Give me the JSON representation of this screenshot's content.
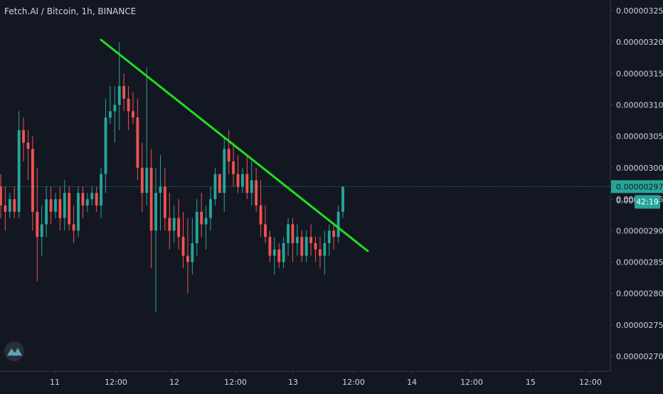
{
  "header": {
    "title": "Fetch.AI / Bitcoin, 1h, BINANCE"
  },
  "colors": {
    "background": "#131722",
    "up": "#26a69a",
    "down": "#ef5350",
    "trendline": "#22dd22",
    "price_line": "#26a69a",
    "axis_text": "#d1d4dc",
    "axis_border": "#363a45",
    "label_bg": "#26a69a",
    "label_text": "#131722"
  },
  "chart_data": {
    "type": "candlestick",
    "ylim": [
      2.68e-06,
      3.26e-06
    ],
    "y_ticks": [
      "0.00000325",
      "0.00000320",
      "0.00000315",
      "0.00000310",
      "0.00000305",
      "0.00000300",
      "0.00000295",
      "0.00000290",
      "0.00000285",
      "0.00000280",
      "0.00000275",
      "0.00000270"
    ],
    "x_ticks": [
      "11",
      "12:00",
      "12",
      "12:00",
      "13",
      "12:00",
      "14",
      "12:00",
      "15",
      "12:00"
    ],
    "current_price": {
      "label": "0.00000297",
      "value": 2.97e-06,
      "countdown": "42:19"
    },
    "partial_tick_label": "0.00000",
    "candles": [
      [
        297,
        299,
        292,
        294
      ],
      [
        294,
        297,
        290,
        293
      ],
      [
        293,
        296,
        292,
        295
      ],
      [
        295,
        297,
        292,
        293
      ],
      [
        293,
        309,
        292,
        306
      ],
      [
        306,
        308,
        301,
        304
      ],
      [
        304,
        306,
        298,
        303
      ],
      [
        303,
        305,
        290,
        293
      ],
      [
        293,
        300,
        282,
        289
      ],
      [
        289,
        294,
        286,
        291
      ],
      [
        291,
        297,
        289,
        295
      ],
      [
        295,
        297,
        291,
        293
      ],
      [
        293,
        296,
        292,
        295
      ],
      [
        295,
        297,
        290,
        292
      ],
      [
        292,
        298,
        290,
        296
      ],
      [
        296,
        297,
        290,
        291
      ],
      [
        291,
        294,
        288,
        290
      ],
      [
        290,
        297,
        289,
        296
      ],
      [
        296,
        297,
        292,
        294
      ],
      [
        294,
        296,
        293,
        295
      ],
      [
        295,
        297,
        294,
        296
      ],
      [
        296,
        297,
        293,
        294
      ],
      [
        294,
        300,
        292,
        299
      ],
      [
        299,
        311,
        296,
        308
      ],
      [
        308,
        313,
        307,
        309
      ],
      [
        309,
        313,
        304,
        310
      ],
      [
        310,
        320,
        306,
        313
      ],
      [
        313,
        315,
        309,
        311
      ],
      [
        311,
        313,
        306,
        309
      ],
      [
        309,
        312,
        307,
        308
      ],
      [
        308,
        311,
        298,
        300
      ],
      [
        300,
        304,
        293,
        296
      ],
      [
        296,
        316,
        294,
        300
      ],
      [
        300,
        303,
        284,
        290
      ],
      [
        290,
        300,
        277,
        296
      ],
      [
        296,
        302,
        290,
        297
      ],
      [
        297,
        300,
        290,
        292
      ],
      [
        292,
        296,
        287,
        290
      ],
      [
        290,
        294,
        288,
        292
      ],
      [
        292,
        295,
        287,
        289
      ],
      [
        289,
        293,
        284,
        286
      ],
      [
        286,
        292,
        280,
        285
      ],
      [
        285,
        292,
        283,
        288
      ],
      [
        288,
        295,
        286,
        293
      ],
      [
        293,
        296,
        289,
        291
      ],
      [
        291,
        294,
        287,
        292
      ],
      [
        292,
        297,
        290,
        295
      ],
      [
        295,
        300,
        294,
        299
      ],
      [
        299,
        299,
        296,
        296
      ],
      [
        296,
        305,
        293,
        303
      ],
      [
        303,
        306,
        299,
        301
      ],
      [
        301,
        304,
        297,
        299
      ],
      [
        299,
        302,
        296,
        297
      ],
      [
        297,
        300,
        296,
        299
      ],
      [
        299,
        302,
        295,
        296
      ],
      [
        296,
        301,
        294,
        298
      ],
      [
        298,
        300,
        293,
        294
      ],
      [
        294,
        298,
        289,
        291
      ],
      [
        291,
        294,
        288,
        289
      ],
      [
        289,
        290,
        285,
        286
      ],
      [
        286,
        289,
        283,
        287
      ],
      [
        287,
        288,
        284,
        285
      ],
      [
        285,
        289,
        284,
        288
      ],
      [
        288,
        292,
        286,
        291
      ],
      [
        291,
        292,
        285,
        288
      ],
      [
        288,
        291,
        286,
        289
      ],
      [
        289,
        290,
        285,
        286
      ],
      [
        286,
        290,
        285,
        289
      ],
      [
        289,
        291,
        286,
        288
      ],
      [
        288,
        289,
        285,
        287
      ],
      [
        287,
        289,
        284,
        286
      ],
      [
        286,
        290,
        283,
        288
      ],
      [
        288,
        291,
        286,
        290
      ],
      [
        290,
        291,
        287,
        289
      ],
      [
        289,
        294,
        288,
        293
      ],
      [
        293,
        297,
        292,
        297
      ]
    ],
    "trendline": [
      [
        3.2e-06,
        3.2e-06
      ],
      [
        2.87e-06
      ]
    ]
  }
}
